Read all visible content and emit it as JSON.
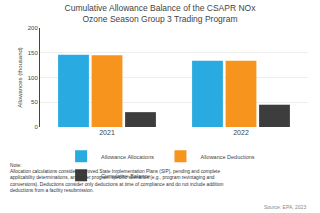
{
  "chart_data": {
    "type": "bar",
    "title": "Cumulative Allowance Balance of the CSAPR NOx\nOzone Season Group 3 Trading Program",
    "categories": [
      "2021",
      "2022"
    ],
    "series": [
      {
        "name": "Allowance Allocations",
        "color": "#29ABE2",
        "values": [
          146,
          134
        ]
      },
      {
        "name": "Allowance Deductions",
        "color": "#F7941D",
        "values": [
          145,
          134
        ]
      },
      {
        "name": "Cumulative Balance",
        "color": "#3D3D3D",
        "values": [
          30,
          45
        ]
      }
    ],
    "ylabel": "Allowances (thousand)",
    "ylim": [
      0,
      200
    ],
    "yticks": [
      0,
      50,
      100,
      150,
      200
    ],
    "grid": true,
    "legend": "bottom",
    "annotations": [
      "Note:\nAllocation calculations consider approved State Implementation Plans (SIP), pending and complete\napplicability determinations, and other program specific scenarios (e.g., program revintaging and\nconversions). Deductions consider only deductions at time of compliance and do not include addition\ndeductions from a facility resubmission.",
      "Source: EPA, 2023"
    ]
  }
}
